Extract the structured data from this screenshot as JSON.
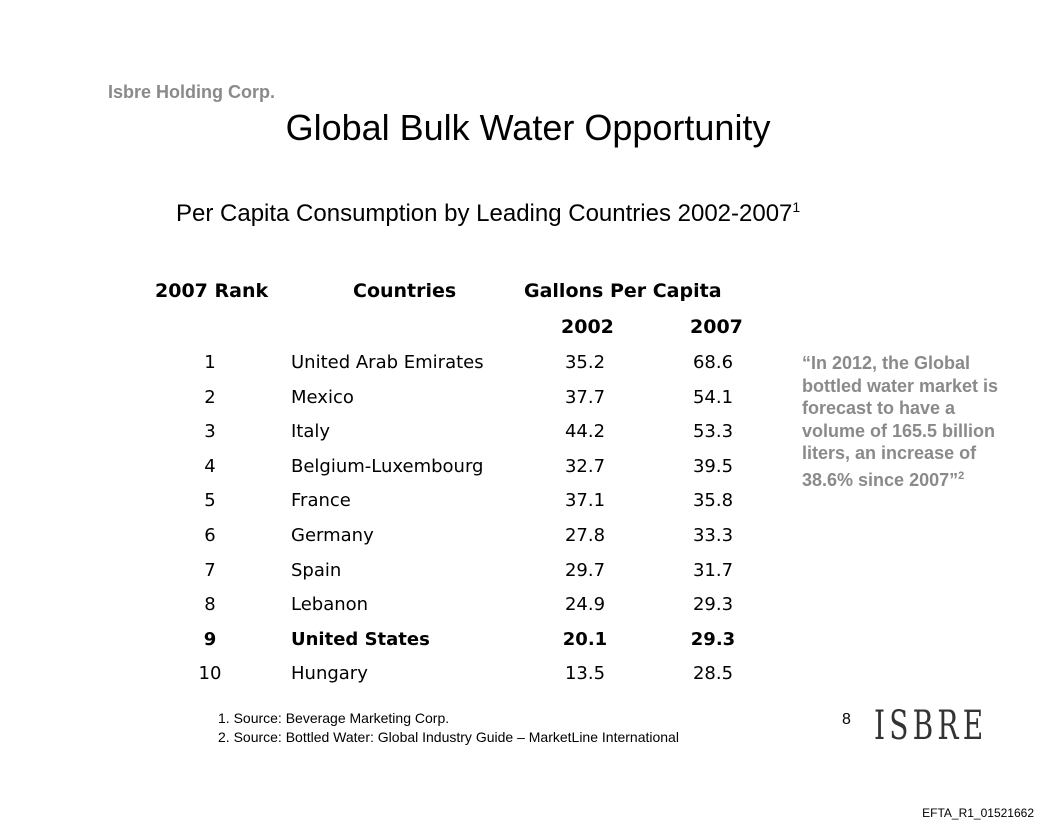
{
  "company": "Isbre Holding Corp.",
  "title": "Global Bulk Water Opportunity",
  "subtitle": "Per Capita Consumption by Leading Countries 2002-2007",
  "subtitle_sup": "1",
  "table": {
    "headers": {
      "rank": "2007 Rank",
      "countries": "Countries",
      "gallons": "Gallons Per Capita",
      "y2002": "2002",
      "y2007": "2007"
    },
    "rows": [
      {
        "rank": "1",
        "country": "United Arab Emirates",
        "v2002": "35.2",
        "v2007": "68.6"
      },
      {
        "rank": "2",
        "country": "Mexico",
        "v2002": "37.7",
        "v2007": "54.1"
      },
      {
        "rank": "3",
        "country": "Italy",
        "v2002": "44.2",
        "v2007": "53.3"
      },
      {
        "rank": "4",
        "country": "Belgium-Luxembourg",
        "v2002": "32.7",
        "v2007": "39.5"
      },
      {
        "rank": "5",
        "country": "France",
        "v2002": "37.1",
        "v2007": "35.8"
      },
      {
        "rank": "6",
        "country": "Germany",
        "v2002": "27.8",
        "v2007": "33.3"
      },
      {
        "rank": "7",
        "country": "Spain",
        "v2002": "29.7",
        "v2007": "31.7"
      },
      {
        "rank": "8",
        "country": "Lebanon",
        "v2002": "24.9",
        "v2007": "29.3"
      },
      {
        "rank": "9",
        "country": "United States",
        "v2002": "20.1",
        "v2007": "29.3"
      },
      {
        "rank": "10",
        "country": "Hungary",
        "v2002": "13.5",
        "v2007": "28.5"
      }
    ]
  },
  "quote": "“In 2012, the Global bottled water market is forecast to have a volume of 165.5 billion liters, an increase of 38.6% since 2007”",
  "quote_sup": "2",
  "notes": [
    "1.  Source: Beverage Marketing Corp.",
    "2.  Source: Bottled Water: Global Industry Guide – MarketLine International"
  ],
  "page_number": "8",
  "logo": "ISBRE",
  "ref": "EFTA_R1_01521662"
}
